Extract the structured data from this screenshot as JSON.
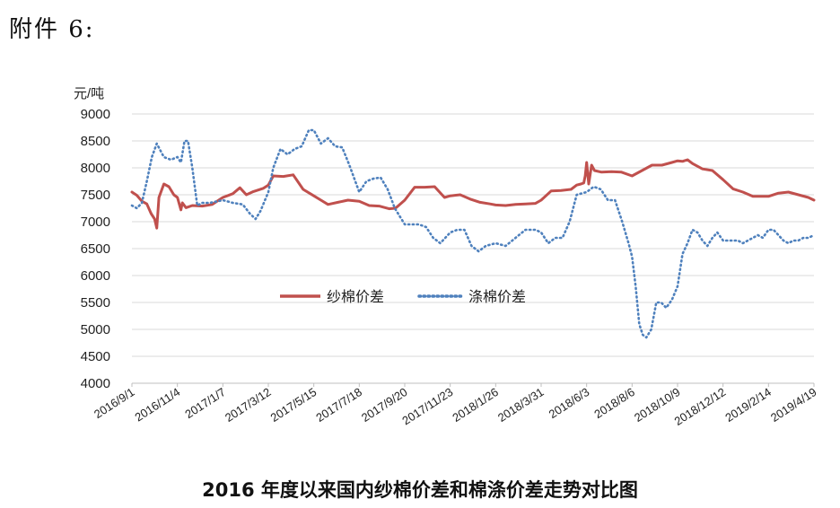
{
  "header": {
    "attachment_label": "附件 6:"
  },
  "caption": "2016 年度以来国内纱棉价差和棉涤价差走势对比图",
  "chart_data": {
    "type": "line",
    "title": "2016 年度以来国内纱棉价差和棉涤价差走势对比图",
    "ylabel": "元/吨",
    "xlabel": "",
    "ylim": [
      4000,
      9000
    ],
    "yticks": [
      4000,
      4500,
      5000,
      5500,
      6000,
      6500,
      7000,
      7500,
      8000,
      8500,
      9000
    ],
    "xlim": [
      "2016-09-01",
      "2019-04-19"
    ],
    "xtick_labels": [
      "2016/9/1",
      "2016/11/4",
      "2017/1/7",
      "2017/3/12",
      "2017/5/15",
      "2017/7/18",
      "2017/9/20",
      "2017/11/23",
      "2018/1/26",
      "2018/3/31",
      "2018/6/3",
      "2018/8/6",
      "2018/10/9",
      "2018/12/12",
      "2019/2/14",
      "2019/4/19"
    ],
    "grid": "horizontal",
    "legend": "center",
    "colors": {
      "yarn_cotton": "#c0504d",
      "cotton_polyester": "#4f81bd"
    },
    "series": [
      {
        "name": "纱棉价差",
        "style": "solid",
        "x": [
          "2016-09-01",
          "2016-09-08",
          "2016-09-15",
          "2016-09-22",
          "2016-09-28",
          "2016-10-03",
          "2016-10-06",
          "2016-10-09",
          "2016-10-16",
          "2016-10-23",
          "2016-10-30",
          "2016-11-04",
          "2016-11-09",
          "2016-11-11",
          "2016-11-16",
          "2016-11-25",
          "2016-12-09",
          "2016-12-23",
          "2017-01-07",
          "2017-01-21",
          "2017-01-31",
          "2017-02-09",
          "2017-02-19",
          "2017-03-05",
          "2017-03-12",
          "2017-03-19",
          "2017-04-02",
          "2017-04-16",
          "2017-04-30",
          "2017-05-15",
          "2017-05-25",
          "2017-06-04",
          "2017-06-18",
          "2017-07-02",
          "2017-07-18",
          "2017-08-01",
          "2017-08-15",
          "2017-08-29",
          "2017-09-07",
          "2017-09-20",
          "2017-10-04",
          "2017-10-18",
          "2017-11-01",
          "2017-11-15",
          "2017-11-23",
          "2017-12-07",
          "2017-12-21",
          "2018-01-04",
          "2018-01-18",
          "2018-01-26",
          "2018-02-09",
          "2018-02-23",
          "2018-03-09",
          "2018-03-23",
          "2018-03-31",
          "2018-04-14",
          "2018-04-28",
          "2018-05-12",
          "2018-05-20",
          "2018-05-26",
          "2018-05-30",
          "2018-06-01",
          "2018-06-03",
          "2018-06-06",
          "2018-06-10",
          "2018-06-14",
          "2018-06-24",
          "2018-07-08",
          "2018-07-22",
          "2018-08-06",
          "2018-08-20",
          "2018-09-03",
          "2018-09-17",
          "2018-10-01",
          "2018-10-09",
          "2018-10-16",
          "2018-10-23",
          "2018-10-30",
          "2018-11-13",
          "2018-11-27",
          "2018-12-12",
          "2018-12-26",
          "2019-01-09",
          "2019-01-23",
          "2019-02-06",
          "2019-02-14",
          "2019-02-28",
          "2019-03-14",
          "2019-03-28",
          "2019-04-11",
          "2019-04-19"
        ],
        "values": [
          7550,
          7490,
          7380,
          7330,
          7150,
          7050,
          6880,
          7450,
          7700,
          7650,
          7500,
          7450,
          7220,
          7350,
          7260,
          7300,
          7290,
          7320,
          7450,
          7520,
          7630,
          7500,
          7560,
          7620,
          7680,
          7850,
          7840,
          7870,
          7600,
          7480,
          7400,
          7320,
          7360,
          7400,
          7380,
          7300,
          7290,
          7240,
          7250,
          7400,
          7640,
          7640,
          7650,
          7450,
          7480,
          7500,
          7420,
          7360,
          7330,
          7310,
          7300,
          7320,
          7330,
          7340,
          7400,
          7570,
          7580,
          7600,
          7680,
          7700,
          7720,
          7850,
          8100,
          7700,
          8050,
          7950,
          7920,
          7930,
          7920,
          7850,
          7950,
          8050,
          8050,
          8100,
          8130,
          8120,
          8150,
          8080,
          7980,
          7950,
          7780,
          7610,
          7550,
          7470,
          7470,
          7470,
          7530,
          7550,
          7500,
          7450,
          7400
        ]
      },
      {
        "name": "涤棉价差",
        "style": "dotted",
        "x": [
          "2016-09-01",
          "2016-09-08",
          "2016-09-15",
          "2016-09-22",
          "2016-09-29",
          "2016-10-06",
          "2016-10-16",
          "2016-10-26",
          "2016-11-04",
          "2016-11-09",
          "2016-11-14",
          "2016-11-19",
          "2016-11-25",
          "2016-12-02",
          "2016-12-09",
          "2016-12-20",
          "2017-01-07",
          "2017-01-21",
          "2017-02-04",
          "2017-02-14",
          "2017-02-22",
          "2017-03-01",
          "2017-03-12",
          "2017-03-19",
          "2017-03-29",
          "2017-04-08",
          "2017-04-18",
          "2017-04-28",
          "2017-05-08",
          "2017-05-15",
          "2017-05-25",
          "2017-06-04",
          "2017-06-14",
          "2017-06-24",
          "2017-07-04",
          "2017-07-18",
          "2017-07-28",
          "2017-08-07",
          "2017-08-17",
          "2017-08-27",
          "2017-09-06",
          "2017-09-20",
          "2017-09-30",
          "2017-10-10",
          "2017-10-20",
          "2017-10-30",
          "2017-11-09",
          "2017-11-23",
          "2017-12-03",
          "2017-12-13",
          "2017-12-23",
          "2018-01-02",
          "2018-01-12",
          "2018-01-26",
          "2018-02-09",
          "2018-02-23",
          "2018-03-09",
          "2018-03-23",
          "2018-03-31",
          "2018-04-10",
          "2018-04-20",
          "2018-04-30",
          "2018-05-10",
          "2018-05-20",
          "2018-06-03",
          "2018-06-13",
          "2018-06-23",
          "2018-07-03",
          "2018-07-13",
          "2018-07-23",
          "2018-08-01",
          "2018-08-06",
          "2018-08-11",
          "2018-08-16",
          "2018-08-21",
          "2018-08-26",
          "2018-09-02",
          "2018-09-09",
          "2018-09-16",
          "2018-09-23",
          "2018-10-01",
          "2018-10-09",
          "2018-10-16",
          "2018-10-23",
          "2018-10-30",
          "2018-11-06",
          "2018-11-13",
          "2018-11-20",
          "2018-11-27",
          "2018-12-04",
          "2018-12-12",
          "2018-12-19",
          "2018-12-26",
          "2019-01-02",
          "2019-01-09",
          "2019-01-16",
          "2019-01-23",
          "2019-01-30",
          "2019-02-06",
          "2019-02-14",
          "2019-02-21",
          "2019-02-28",
          "2019-03-07",
          "2019-03-14",
          "2019-03-21",
          "2019-03-28",
          "2019-04-04",
          "2019-04-11",
          "2019-04-19"
        ],
        "values": [
          7300,
          7250,
          7350,
          7750,
          8200,
          8450,
          8200,
          8150,
          8200,
          8100,
          8500,
          8500,
          8000,
          7300,
          7350,
          7350,
          7400,
          7350,
          7320,
          7150,
          7050,
          7200,
          7550,
          8000,
          8350,
          8250,
          8350,
          8400,
          8700,
          8700,
          8450,
          8550,
          8400,
          8380,
          8050,
          7550,
          7750,
          7800,
          7820,
          7600,
          7250,
          6950,
          6950,
          6950,
          6900,
          6700,
          6600,
          6800,
          6850,
          6850,
          6550,
          6450,
          6550,
          6600,
          6550,
          6700,
          6850,
          6850,
          6800,
          6600,
          6700,
          6700,
          7000,
          7500,
          7550,
          7650,
          7600,
          7400,
          7400,
          7000,
          6600,
          6350,
          5800,
          5100,
          4900,
          4850,
          5000,
          5500,
          5500,
          5400,
          5550,
          5800,
          6400,
          6600,
          6850,
          6800,
          6650,
          6550,
          6700,
          6800,
          6650,
          6650,
          6650,
          6650,
          6600,
          6650,
          6700,
          6750,
          6700,
          6850,
          6850,
          6750,
          6650,
          6600,
          6650,
          6650,
          6700,
          6700,
          6750
        ]
      }
    ]
  }
}
